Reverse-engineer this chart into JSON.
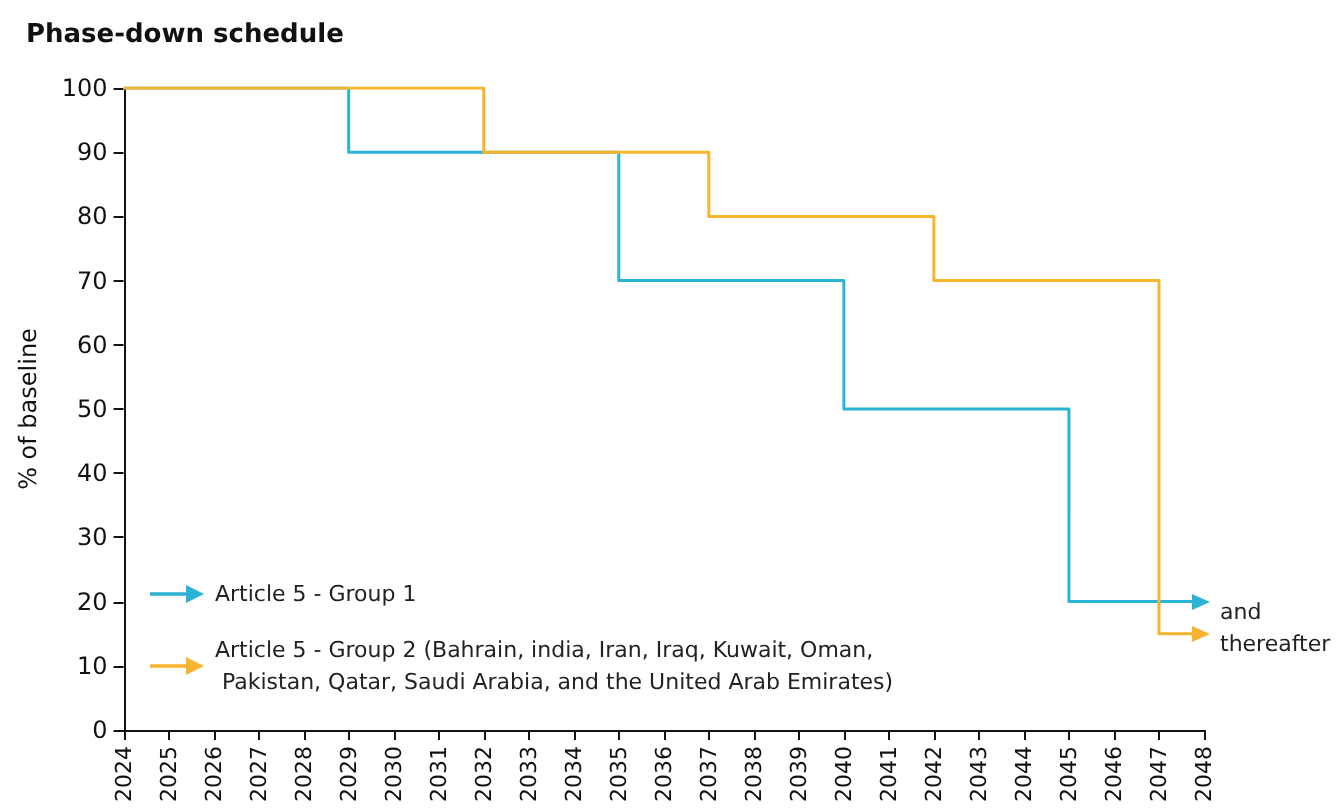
{
  "chart_data": {
    "type": "step",
    "title": "Phase-down schedule",
    "ylabel": "% of baseline",
    "series": [
      {
        "name": "Article 5 - Group 1",
        "color": "#2bb3d6",
        "x": [
          2024,
          2029,
          2035,
          2040,
          2045,
          2048
        ],
        "values": [
          100,
          90,
          70,
          50,
          20,
          20
        ]
      },
      {
        "name": "Article 5 - Group 2 (Bahrain, india, Iran, Iraq, Kuwait, Oman, Pakistan, Qatar, Saudi Arabia, and the United Arab Emirates)",
        "color": "#f7b42c",
        "x": [
          2024,
          2032,
          2037,
          2042,
          2047,
          2048
        ],
        "values": [
          100,
          90,
          80,
          70,
          15,
          15
        ]
      }
    ],
    "xlim": [
      2024,
      2048
    ],
    "xticks": [
      2024,
      2025,
      2026,
      2027,
      2028,
      2029,
      2030,
      2031,
      2032,
      2033,
      2034,
      2035,
      2036,
      2037,
      2038,
      2039,
      2040,
      2041,
      2042,
      2043,
      2044,
      2045,
      2046,
      2047,
      2048
    ],
    "ylim": [
      0,
      100
    ],
    "yticks": [
      0,
      10,
      20,
      30,
      40,
      50,
      60,
      70,
      80,
      90,
      100
    ],
    "grid": false,
    "legend": "bottom left",
    "marker": "none",
    "line_style": "solid",
    "annotations": [
      "and thereafter"
    ]
  }
}
